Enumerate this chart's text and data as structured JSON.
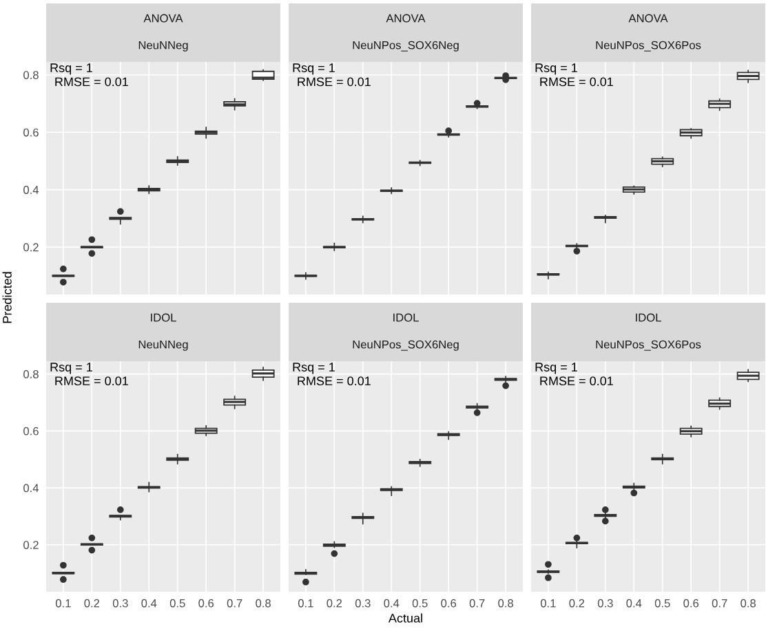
{
  "chart_data": [
    {
      "type": "box",
      "title": "ANOVA",
      "subtitle": "NeuNNeg",
      "ylabel": "Predicted",
      "annotations": [
        "Rsq = 1",
        "RMSE = 0.01"
      ],
      "categories": [
        "0.1",
        "0.2",
        "0.3",
        "0.4",
        "0.5",
        "0.6",
        "0.7",
        "0.8"
      ],
      "ylim": [
        0.035,
        0.845
      ],
      "yticks": [
        0.2,
        0.4,
        0.6,
        0.8
      ],
      "grid": true,
      "tick_labels": "y",
      "boxes": [
        {
          "low": 0.098,
          "q1": 0.098,
          "median": 0.1,
          "q3": 0.102,
          "high": 0.102,
          "outliers": [
            0.078,
            0.124
          ]
        },
        {
          "low": 0.198,
          "q1": 0.198,
          "median": 0.2,
          "q3": 0.202,
          "high": 0.202,
          "outliers": [
            0.178,
            0.226
          ]
        },
        {
          "low": 0.28,
          "q1": 0.297,
          "median": 0.3,
          "q3": 0.303,
          "high": 0.304,
          "outliers": [
            0.324
          ]
        },
        {
          "low": 0.386,
          "q1": 0.396,
          "median": 0.4,
          "q3": 0.404,
          "high": 0.414
        },
        {
          "low": 0.485,
          "q1": 0.495,
          "median": 0.499,
          "q3": 0.503,
          "high": 0.515
        },
        {
          "low": 0.579,
          "q1": 0.594,
          "median": 0.6,
          "q3": 0.604,
          "high": 0.618
        },
        {
          "low": 0.678,
          "q1": 0.692,
          "median": 0.697,
          "q3": 0.706,
          "high": 0.717
        },
        {
          "low": 0.78,
          "q1": 0.785,
          "median": 0.79,
          "q3": 0.812,
          "high": 0.818
        }
      ]
    },
    {
      "type": "box",
      "title": "ANOVA",
      "subtitle": "NeuNPos_SOX6Neg",
      "annotations": [
        "Rsq = 1",
        "RMSE = 0.01"
      ],
      "categories": [
        "0.1",
        "0.2",
        "0.3",
        "0.4",
        "0.5",
        "0.6",
        "0.7",
        "0.8"
      ],
      "ylim": [
        0.035,
        0.845
      ],
      "yticks": [
        0.2,
        0.4,
        0.6,
        0.8
      ],
      "grid": true,
      "tick_labels": false,
      "boxes": [
        {
          "low": 0.088,
          "q1": 0.098,
          "median": 0.1,
          "q3": 0.102,
          "high": 0.111
        },
        {
          "low": 0.188,
          "q1": 0.198,
          "median": 0.2,
          "q3": 0.202,
          "high": 0.214
        },
        {
          "low": 0.285,
          "q1": 0.295,
          "median": 0.297,
          "q3": 0.299,
          "high": 0.308
        },
        {
          "low": 0.386,
          "q1": 0.394,
          "median": 0.396,
          "q3": 0.398,
          "high": 0.407
        },
        {
          "low": 0.484,
          "q1": 0.492,
          "median": 0.494,
          "q3": 0.496,
          "high": 0.502
        },
        {
          "low": 0.583,
          "q1": 0.59,
          "median": 0.592,
          "q3": 0.594,
          "high": 0.598,
          "outliers": [
            0.605
          ]
        },
        {
          "low": 0.682,
          "q1": 0.688,
          "median": 0.69,
          "q3": 0.692,
          "high": 0.695,
          "outliers": [
            0.701
          ]
        },
        {
          "low": 0.785,
          "q1": 0.787,
          "median": 0.789,
          "q3": 0.791,
          "high": 0.793,
          "outliers": [
            0.783,
            0.797
          ]
        }
      ]
    },
    {
      "type": "box",
      "title": "ANOVA",
      "subtitle": "NeuNPos_SOX6Pos",
      "annotations": [
        "Rsq = 1",
        "RMSE = 0.01"
      ],
      "categories": [
        "0.1",
        "0.2",
        "0.3",
        "0.4",
        "0.5",
        "0.6",
        "0.7",
        "0.8"
      ],
      "ylim": [
        0.035,
        0.845
      ],
      "yticks": [
        0.2,
        0.4,
        0.6,
        0.8
      ],
      "grid": true,
      "tick_labels": false,
      "boxes": [
        {
          "low": 0.089,
          "q1": 0.103,
          "median": 0.105,
          "q3": 0.107,
          "high": 0.113
        },
        {
          "low": 0.197,
          "q1": 0.202,
          "median": 0.204,
          "q3": 0.206,
          "high": 0.212,
          "outliers": [
            0.186
          ]
        },
        {
          "low": 0.285,
          "q1": 0.301,
          "median": 0.303,
          "q3": 0.306,
          "high": 0.311
        },
        {
          "low": 0.384,
          "q1": 0.392,
          "median": 0.401,
          "q3": 0.409,
          "high": 0.413
        },
        {
          "low": 0.48,
          "q1": 0.489,
          "median": 0.499,
          "q3": 0.508,
          "high": 0.514
        },
        {
          "low": 0.579,
          "q1": 0.588,
          "median": 0.599,
          "q3": 0.609,
          "high": 0.613
        },
        {
          "low": 0.676,
          "q1": 0.686,
          "median": 0.699,
          "q3": 0.709,
          "high": 0.716
        },
        {
          "low": 0.773,
          "q1": 0.784,
          "median": 0.796,
          "q3": 0.808,
          "high": 0.816
        }
      ]
    },
    {
      "type": "box",
      "title": "IDOL",
      "subtitle": "NeuNNeg",
      "annotations": [
        "Rsq = 1",
        "RMSE = 0.01"
      ],
      "categories": [
        "0.1",
        "0.2",
        "0.3",
        "0.4",
        "0.5",
        "0.6",
        "0.7",
        "0.8"
      ],
      "ylim": [
        0.035,
        0.845
      ],
      "yticks": [
        0.2,
        0.4,
        0.6,
        0.8
      ],
      "grid": true,
      "boxes": [
        {
          "low": 0.099,
          "q1": 0.099,
          "median": 0.1,
          "q3": 0.103,
          "high": 0.103,
          "outliers": [
            0.078,
            0.128
          ]
        },
        {
          "low": 0.199,
          "q1": 0.199,
          "median": 0.201,
          "q3": 0.203,
          "high": 0.203,
          "outliers": [
            0.181,
            0.224
          ]
        },
        {
          "low": 0.287,
          "q1": 0.298,
          "median": 0.301,
          "q3": 0.303,
          "high": 0.303,
          "outliers": [
            0.323
          ]
        },
        {
          "low": 0.386,
          "q1": 0.399,
          "median": 0.402,
          "q3": 0.404,
          "high": 0.419
        },
        {
          "low": 0.484,
          "q1": 0.497,
          "median": 0.502,
          "q3": 0.505,
          "high": 0.518
        },
        {
          "low": 0.583,
          "q1": 0.592,
          "median": 0.601,
          "q3": 0.609,
          "high": 0.619
        },
        {
          "low": 0.678,
          "q1": 0.691,
          "median": 0.702,
          "q3": 0.711,
          "high": 0.722
        },
        {
          "low": 0.777,
          "q1": 0.789,
          "median": 0.802,
          "q3": 0.814,
          "high": 0.824
        }
      ]
    },
    {
      "type": "box",
      "title": "IDOL",
      "subtitle": "NeuNPos_SOX6Neg",
      "xlabel": "Actual",
      "annotations": [
        "Rsq = 1",
        "RMSE = 0.01"
      ],
      "categories": [
        "0.1",
        "0.2",
        "0.3",
        "0.4",
        "0.5",
        "0.6",
        "0.7",
        "0.8"
      ],
      "ylim": [
        0.035,
        0.845
      ],
      "yticks": [
        0.2,
        0.4,
        0.6,
        0.8
      ],
      "grid": true,
      "tick_labels": "x",
      "boxes": [
        {
          "low": 0.095,
          "q1": 0.097,
          "median": 0.1,
          "q3": 0.103,
          "high": 0.113,
          "outliers": [
            0.069
          ]
        },
        {
          "low": 0.19,
          "q1": 0.195,
          "median": 0.199,
          "q3": 0.202,
          "high": 0.211,
          "outliers": [
            0.169
          ]
        },
        {
          "low": 0.273,
          "q1": 0.293,
          "median": 0.296,
          "q3": 0.299,
          "high": 0.311
        },
        {
          "low": 0.373,
          "q1": 0.391,
          "median": 0.394,
          "q3": 0.397,
          "high": 0.404
        },
        {
          "low": 0.475,
          "q1": 0.486,
          "median": 0.489,
          "q3": 0.492,
          "high": 0.5
        },
        {
          "low": 0.57,
          "q1": 0.584,
          "median": 0.587,
          "q3": 0.59,
          "high": 0.597
        },
        {
          "low": 0.675,
          "q1": 0.681,
          "median": 0.684,
          "q3": 0.687,
          "high": 0.696,
          "outliers": [
            0.664
          ]
        },
        {
          "low": 0.772,
          "q1": 0.778,
          "median": 0.781,
          "q3": 0.784,
          "high": 0.792,
          "outliers": [
            0.759
          ]
        }
      ]
    },
    {
      "type": "box",
      "title": "IDOL",
      "subtitle": "NeuNPos_SOX6Pos",
      "annotations": [
        "Rsq = 1",
        "RMSE = 0.01"
      ],
      "categories": [
        "0.1",
        "0.2",
        "0.3",
        "0.4",
        "0.5",
        "0.6",
        "0.7",
        "0.8"
      ],
      "ylim": [
        0.035,
        0.845
      ],
      "yticks": [
        0.2,
        0.4,
        0.6,
        0.8
      ],
      "grid": true,
      "tick_labels": "x",
      "boxes": [
        {
          "low": 0.099,
          "q1": 0.103,
          "median": 0.106,
          "q3": 0.108,
          "high": 0.112,
          "outliers": [
            0.084,
            0.131
          ]
        },
        {
          "low": 0.189,
          "q1": 0.204,
          "median": 0.206,
          "q3": 0.208,
          "high": 0.214,
          "outliers": [
            0.224
          ]
        },
        {
          "low": 0.29,
          "q1": 0.3,
          "median": 0.303,
          "q3": 0.306,
          "high": 0.315,
          "outliers": [
            0.283,
            0.323
          ]
        },
        {
          "low": 0.392,
          "q1": 0.4,
          "median": 0.403,
          "q3": 0.406,
          "high": 0.416,
          "outliers": [
            0.382
          ]
        },
        {
          "low": 0.484,
          "q1": 0.499,
          "median": 0.502,
          "q3": 0.505,
          "high": 0.518
        },
        {
          "low": 0.579,
          "q1": 0.589,
          "median": 0.599,
          "q3": 0.609,
          "high": 0.617
        },
        {
          "low": 0.676,
          "q1": 0.686,
          "median": 0.696,
          "q3": 0.708,
          "high": 0.716
        },
        {
          "low": 0.773,
          "q1": 0.781,
          "median": 0.794,
          "q3": 0.806,
          "high": 0.816
        }
      ]
    }
  ]
}
